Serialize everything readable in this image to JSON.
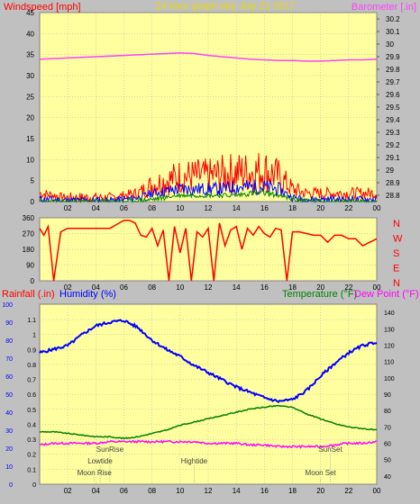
{
  "title": "24 hour graph day   July 21 2017",
  "colors": {
    "background": "#c0c0c0",
    "plot_background": "#ffffa0",
    "wind_gust": "#ff0000",
    "wind_avg": "#0000ff",
    "wind_low": "#008000",
    "barometer": "#ff40ff",
    "direction": "#ff0000",
    "humidity": "#0000ff",
    "temperature": "#008000",
    "dewpoint": "#ff00ff",
    "title": "#e8d800",
    "grid": "#a8a8a8"
  },
  "chart_data": [
    {
      "id": "wind-baro",
      "type": "line",
      "left_label": "Windspeed [mph]",
      "right_label": "Barometer [.in]",
      "x_ticks": [
        "02",
        "04",
        "06",
        "08",
        "10",
        "12",
        "14",
        "16",
        "18",
        "20",
        "22",
        "00"
      ],
      "left_ticks": [
        "0",
        "5",
        "10",
        "15",
        "20",
        "25",
        "30",
        "35",
        "40",
        "45"
      ],
      "right_ticks": [
        "28.8",
        "28.9",
        "29",
        "29.1",
        "29.2",
        "29.3",
        "29.4",
        "29.5",
        "29.6",
        "29.7",
        "29.8",
        "29.9",
        "30",
        "30.1",
        "30.2"
      ],
      "wind_range": [
        0,
        45
      ],
      "baro_range": [
        28.75,
        30.25
      ],
      "barometer": {
        "hours": [
          0,
          1,
          2,
          3,
          4,
          5,
          6,
          7,
          8,
          9,
          10,
          11,
          12,
          13,
          14,
          15,
          16,
          17,
          18,
          19,
          20,
          21,
          22,
          23,
          24
        ],
        "values": [
          29.88,
          29.885,
          29.89,
          29.895,
          29.9,
          29.905,
          29.91,
          29.915,
          29.92,
          29.925,
          29.93,
          29.925,
          29.91,
          29.9,
          29.89,
          29.88,
          29.875,
          29.87,
          29.87,
          29.865,
          29.865,
          29.87,
          29.875,
          29.875,
          29.88
        ]
      },
      "wind_gust": {
        "hours": [
          0,
          1,
          2,
          3,
          4,
          5,
          6,
          7,
          8,
          9,
          10,
          11,
          12,
          13,
          14,
          15,
          16,
          17,
          18,
          19,
          20,
          21,
          22,
          23,
          24
        ],
        "values": [
          2,
          1.5,
          1,
          1,
          1,
          1,
          1.5,
          2,
          4,
          5,
          6,
          6,
          6,
          6.5,
          7,
          7,
          7.5,
          6,
          3,
          2,
          2,
          2,
          2,
          2,
          2
        ]
      },
      "wind_avg": {
        "hours": [
          0,
          1,
          2,
          3,
          4,
          5,
          6,
          7,
          8,
          9,
          10,
          11,
          12,
          13,
          14,
          15,
          16,
          17,
          18,
          19,
          20,
          21,
          22,
          23,
          24
        ],
        "values": [
          0.5,
          0.5,
          0.3,
          0.3,
          0.3,
          0.3,
          0.5,
          1,
          2,
          2.5,
          3,
          3,
          3,
          3,
          3.5,
          3.5,
          3.5,
          3,
          1,
          0.5,
          0.5,
          0.5,
          0.5,
          0.5,
          0.5
        ]
      },
      "wind_low": {
        "hours": [
          0,
          2,
          4,
          6,
          8,
          9,
          10,
          11,
          12,
          13,
          14,
          15,
          16,
          17,
          18,
          20,
          22,
          24
        ],
        "values": [
          0,
          0,
          0,
          0,
          0.5,
          1,
          1.5,
          1.5,
          1.5,
          1.5,
          1.5,
          2,
          2,
          1.5,
          0.5,
          0,
          0,
          0
        ]
      }
    },
    {
      "id": "direction",
      "type": "line",
      "right_label_letters": [
        "N",
        "W",
        "S",
        "E",
        "N"
      ],
      "left_ticks": [
        "0",
        "90",
        "180",
        "270",
        "360"
      ],
      "x_ticks": [
        "02",
        "04",
        "06",
        "08",
        "10",
        "12",
        "14",
        "16",
        "18",
        "20",
        "22",
        "00"
      ],
      "y_range": [
        0,
        360
      ],
      "direction": {
        "hours": [
          0,
          0.3,
          0.6,
          1,
          1.5,
          2,
          3,
          4,
          5,
          6,
          6.4,
          6.8,
          7.2,
          7.6,
          8,
          8.4,
          8.8,
          9.2,
          9.6,
          10,
          10.4,
          10.8,
          11.2,
          11.6,
          12,
          12.4,
          12.8,
          13.2,
          13.6,
          14,
          14.4,
          14.8,
          15.2,
          15.6,
          16,
          16.4,
          16.8,
          17.2,
          17.6,
          18,
          18.5,
          19,
          19.5,
          20,
          20.5,
          21,
          21.5,
          22,
          22.5,
          23,
          23.5,
          24
        ],
        "values": [
          300,
          260,
          310,
          0,
          280,
          300,
          300,
          300,
          300,
          345,
          345,
          330,
          260,
          250,
          300,
          200,
          290,
          0,
          310,
          160,
          300,
          0,
          280,
          250,
          300,
          0,
          330,
          200,
          290,
          310,
          180,
          300,
          260,
          310,
          270,
          250,
          300,
          290,
          0,
          280,
          280,
          270,
          260,
          260,
          220,
          260,
          260,
          240,
          240,
          200,
          220,
          240
        ]
      }
    },
    {
      "id": "rain-hum-temp",
      "type": "line",
      "left_label_rain": "Rainfall (.in)",
      "left_label_humidity": "Humidity (%)",
      "right_label_temp": "Temperature (°F)",
      "right_label_dew": "Dew Point (°F)",
      "humidity_ticks": [
        "0",
        "10",
        "20",
        "30",
        "40",
        "50",
        "60",
        "70",
        "80",
        "90",
        "100"
      ],
      "rain_ticks": [
        "0",
        "0.1",
        "0.2",
        "0.3",
        "0.4",
        "0.5",
        "0.6",
        "0.7",
        "0.8",
        "0.9",
        "1",
        "1.1"
      ],
      "temp_ticks": [
        "40",
        "50",
        "60",
        "70",
        "80",
        "90",
        "100",
        "110",
        "120",
        "130",
        "140"
      ],
      "x_ticks": [
        "02",
        "04",
        "06",
        "08",
        "10",
        "12",
        "14",
        "16",
        "18",
        "20",
        "22",
        "00"
      ],
      "humidity_range": [
        0,
        100
      ],
      "temp_range": [
        35,
        145
      ],
      "humidity": {
        "hours": [
          0,
          1,
          2,
          3,
          4,
          5,
          6,
          7,
          8,
          9,
          10,
          11,
          12,
          13,
          14,
          15,
          16,
          17,
          18,
          19,
          20,
          21,
          22,
          23,
          24
        ],
        "values": [
          73,
          75,
          77,
          83,
          88,
          90,
          91,
          87,
          80,
          75,
          71,
          66,
          62,
          58,
          54,
          51,
          48,
          46,
          47,
          52,
          60,
          67,
          73,
          77,
          79
        ]
      },
      "temperature": {
        "hours": [
          0,
          1,
          2,
          3,
          4,
          5,
          6,
          7,
          8,
          9,
          10,
          11,
          12,
          13,
          14,
          15,
          16,
          17,
          18,
          19,
          20,
          21,
          22,
          23,
          24
        ],
        "values": [
          67,
          67,
          66,
          65,
          64,
          64,
          63,
          64,
          66,
          68,
          71,
          73,
          75,
          77,
          79,
          81,
          82,
          83,
          82,
          78,
          75,
          72,
          70,
          69,
          68
        ]
      },
      "dewpoint": {
        "hours": [
          0,
          1,
          2,
          3,
          4,
          5,
          6,
          7,
          8,
          9,
          10,
          11,
          12,
          13,
          14,
          15,
          16,
          17,
          18,
          19,
          20,
          21,
          22,
          23,
          24
        ],
        "values": [
          59,
          60,
          60,
          60,
          60,
          61,
          61,
          61,
          61,
          61,
          61,
          61,
          60,
          60,
          60,
          59,
          59,
          58,
          58,
          58,
          58,
          59,
          60,
          60,
          61
        ]
      },
      "annotations": [
        {
          "label": "SunRise",
          "hour": 5.0,
          "row": 0
        },
        {
          "label": "Lowtide",
          "hour": 4.3,
          "row": 1
        },
        {
          "label": "Moon Rise",
          "hour": 3.9,
          "row": 2
        },
        {
          "label": "Hightide",
          "hour": 11.0,
          "row": 1
        },
        {
          "label": "SunSet",
          "hour": 20.7,
          "row": 0
        },
        {
          "label": "Moon Set",
          "hour": 20.0,
          "row": 2
        }
      ]
    }
  ]
}
